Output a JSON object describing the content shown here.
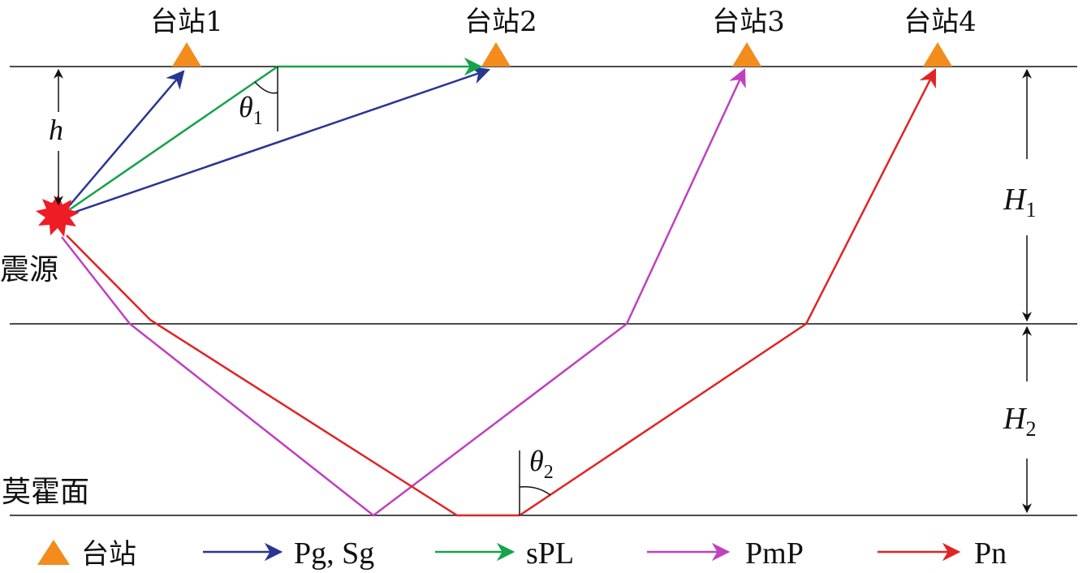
{
  "stations": [
    "台站1",
    "台站2",
    "台站3",
    "台站4"
  ],
  "labels": {
    "source": "震源",
    "moho": "莫霍面",
    "h": "h",
    "H1_base": "H",
    "H1_sub": "1",
    "H2_base": "H",
    "H2_sub": "2",
    "theta1_base": "θ",
    "theta1_sub": "1",
    "theta2_base": "θ",
    "theta2_sub": "2"
  },
  "legend": {
    "station": "台站",
    "pg_sg": "Pg, Sg",
    "spl": "sPL",
    "pmp": "PmP",
    "pn": "Pn"
  },
  "colors": {
    "station": "#f28c1c",
    "pg_sg": "#283593",
    "spl": "#16a34a",
    "pmp": "#c040c0",
    "pn": "#e02424",
    "source": "#ee1c25",
    "lines": "#111111"
  }
}
